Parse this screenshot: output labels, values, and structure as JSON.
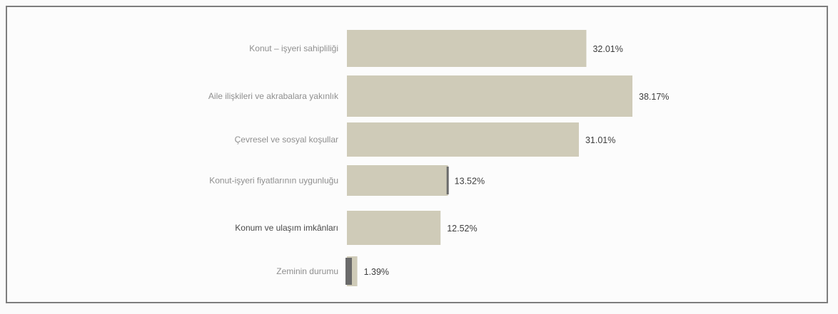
{
  "chart_data": {
    "type": "bar",
    "orientation": "horizontal",
    "categories": [
      "Konut – işyeri sahipliliği",
      "Aile ilişkileri ve akrabalara yakınlık",
      "Çevresel ve sosyal koşullar",
      "Konut-işyeri  fiyatlarının uygunluğu",
      "Konum ve ulaşım imkânları",
      "Zeminin durumu"
    ],
    "values": [
      32.01,
      38.17,
      31.01,
      13.52,
      12.52,
      1.39
    ],
    "value_labels": [
      "32.01%",
      "38.17%",
      "31.01%",
      "13.52%",
      "12.52%",
      "1.39%"
    ],
    "unit": "%",
    "bar_color": "#cfcbb8",
    "xlim": [
      0,
      38.17
    ],
    "grid": false,
    "legend": "none"
  }
}
